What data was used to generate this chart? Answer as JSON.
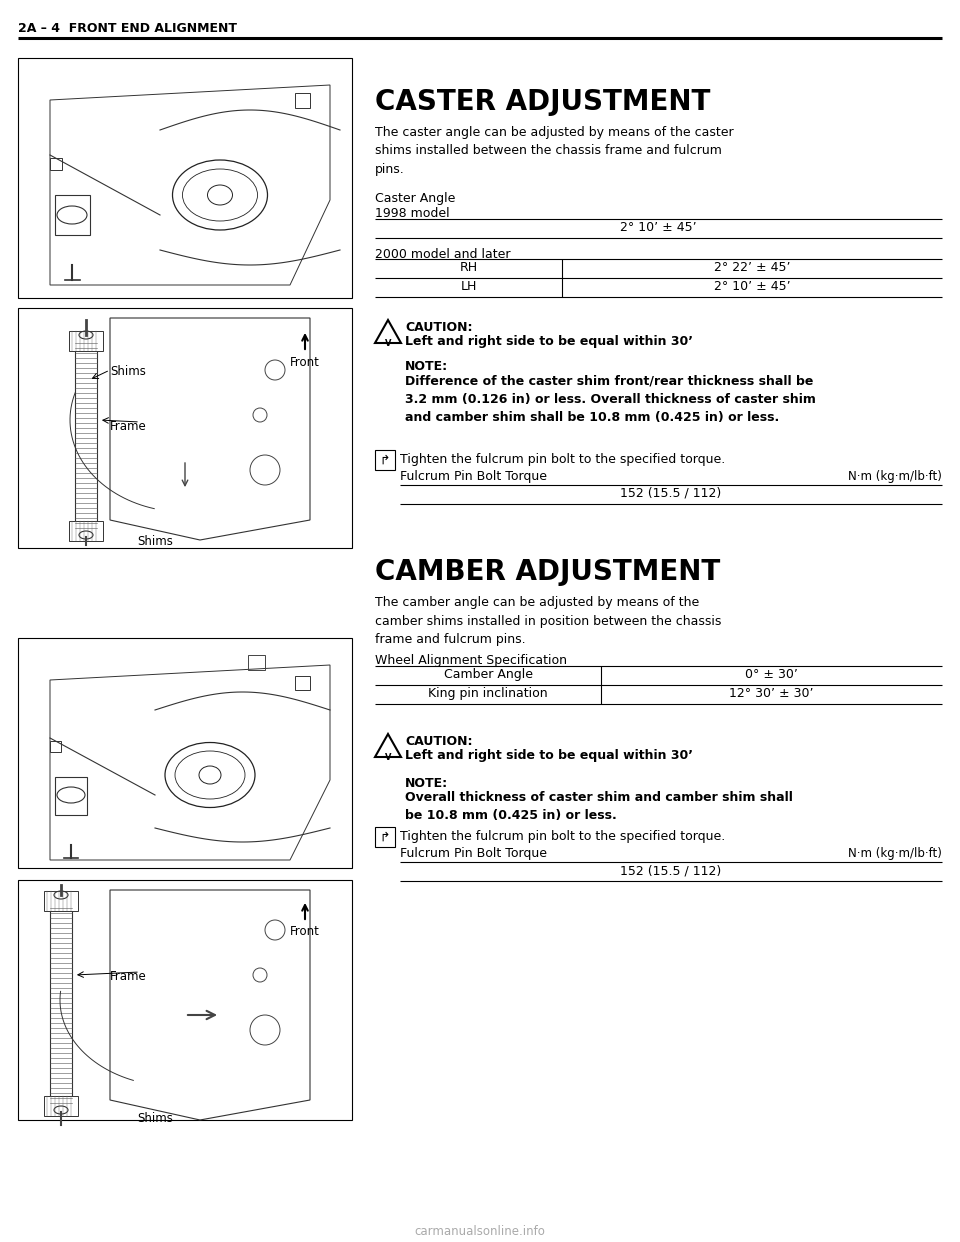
{
  "page_header": "2A – 4  FRONT END ALIGNMENT",
  "bg_color": "#ffffff",
  "text_color": "#000000",
  "section1_title": "CASTER ADJUSTMENT",
  "section1_intro": "The caster angle can be adjusted by means of the caster\nshims installed between the chassis frame and fulcrum\npins.",
  "section1_label1": "Caster Angle",
  "section1_label2": "1998 model",
  "section1_table1_header": "2° 10’ ± 45’",
  "section1_table2_label": "2000 model and later",
  "section1_table2_rh_label": "RH",
  "section1_table2_rh_val": "2° 22’ ± 45’",
  "section1_table2_lh_label": "LH",
  "section1_table2_lh_val": "2° 10’ ± 45’",
  "caution1_title": "CAUTION:",
  "caution1_text": "Left and right side to be equal within 30’",
  "note1_title": "NOTE:",
  "note1_text": "Difference of the caster shim front/rear thickness shall be\n3.2 mm (0.126 in) or less. Overall thickness of caster shim\nand camber shim shall be 10.8 mm (0.425 in) or less.",
  "torque1_intro": "Tighten the fulcrum pin bolt to the specified torque.",
  "torque1_label": "Fulcrum Pin Bolt Torque",
  "torque1_unit": "N·m (kg·m/lb·ft)",
  "torque1_value": "152 (15.5 / 112)",
  "section2_title": "CAMBER ADJUSTMENT",
  "section2_intro": "The camber angle can be adjusted by means of the\ncamber shims installed in position between the chassis\nframe and fulcrum pins.",
  "section2_spec_label": "Wheel Alignment Specification",
  "section2_table_col1_h": "Camber Angle",
  "section2_table_col2_h": "0° ± 30’",
  "section2_table_col1_r": "King pin inclination",
  "section2_table_col2_r": "12° 30’ ± 30’",
  "caution2_title": "CAUTION:",
  "caution2_text": "Left and right side to be equal within 30’",
  "note2_title": "NOTE:",
  "note2_text": "Overall thickness of caster shim and camber shim shall\nbe 10.8 mm (0.425 in) or less.",
  "torque2_intro": "Tighten the fulcrum pin bolt to the specified torque.",
  "torque2_label": "Fulcrum Pin Bolt Torque",
  "torque2_unit": "N·m (kg·m/lb·ft)",
  "torque2_value": "152 (15.5 / 112)",
  "watermark": "carmanualsonline.info"
}
